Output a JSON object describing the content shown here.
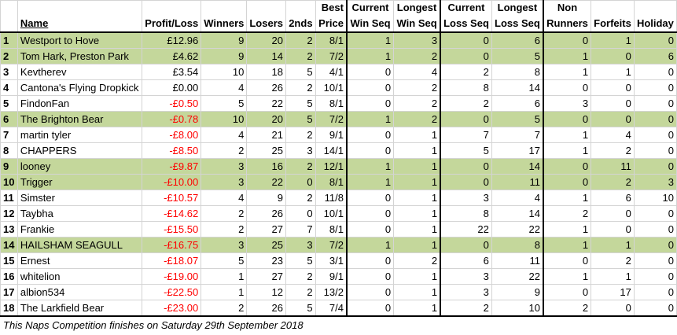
{
  "headers": {
    "name": "Name",
    "profit_loss": "Profit/Loss",
    "winners": "Winners",
    "losers": "Losers",
    "seconds": "2nds",
    "best_price_1": "Best",
    "best_price_2": "Price",
    "current_win_1": "Current",
    "current_win_2": "Win Seq",
    "longest_win_1": "Longest",
    "longest_win_2": "Win Seq",
    "current_loss_1": "Current",
    "current_loss_2": "Loss Seq",
    "longest_loss_1": "Longest",
    "longest_loss_2": "Loss Seq",
    "non_runners_1": "Non",
    "non_runners_2": "Runners",
    "forfeits": "Forfeits",
    "holiday": "Holiday"
  },
  "rows": [
    {
      "pos": "1",
      "name": "Westport to Hove",
      "pl": "£12.96",
      "w": "9",
      "l": "20",
      "s": "2",
      "bp": "8/1",
      "cw": "1",
      "lw": "3",
      "cl": "0",
      "ll": "6",
      "nr": "0",
      "f": "1",
      "h": "0",
      "green": true,
      "neg": false
    },
    {
      "pos": "2",
      "name": "Tom Hark, Preston Park",
      "pl": "£4.62",
      "w": "9",
      "l": "14",
      "s": "2",
      "bp": "7/2",
      "cw": "1",
      "lw": "2",
      "cl": "0",
      "ll": "5",
      "nr": "1",
      "f": "0",
      "h": "6",
      "green": true,
      "neg": false
    },
    {
      "pos": "3",
      "name": "Kevtherev",
      "pl": "£3.54",
      "w": "10",
      "l": "18",
      "s": "5",
      "bp": "4/1",
      "cw": "0",
      "lw": "4",
      "cl": "2",
      "ll": "8",
      "nr": "1",
      "f": "1",
      "h": "0",
      "green": false,
      "neg": false
    },
    {
      "pos": "4",
      "name": "Cantona's Flying Dropkick",
      "pl": "£0.00",
      "w": "4",
      "l": "26",
      "s": "2",
      "bp": "10/1",
      "cw": "0",
      "lw": "2",
      "cl": "8",
      "ll": "14",
      "nr": "0",
      "f": "0",
      "h": "0",
      "green": false,
      "neg": false
    },
    {
      "pos": "5",
      "name": "FindonFan",
      "pl": "-£0.50",
      "w": "5",
      "l": "22",
      "s": "5",
      "bp": "8/1",
      "cw": "0",
      "lw": "2",
      "cl": "2",
      "ll": "6",
      "nr": "3",
      "f": "0",
      "h": "0",
      "green": false,
      "neg": true
    },
    {
      "pos": "6",
      "name": "The Brighton Bear",
      "pl": "-£0.78",
      "w": "10",
      "l": "20",
      "s": "5",
      "bp": "7/2",
      "cw": "1",
      "lw": "2",
      "cl": "0",
      "ll": "5",
      "nr": "0",
      "f": "0",
      "h": "0",
      "green": true,
      "neg": true
    },
    {
      "pos": "7",
      "name": "martin tyler",
      "pl": "-£8.00",
      "w": "4",
      "l": "21",
      "s": "2",
      "bp": "9/1",
      "cw": "0",
      "lw": "1",
      "cl": "7",
      "ll": "7",
      "nr": "1",
      "f": "4",
      "h": "0",
      "green": false,
      "neg": true
    },
    {
      "pos": "8",
      "name": "CHAPPERS",
      "pl": "-£8.50",
      "w": "2",
      "l": "25",
      "s": "3",
      "bp": "14/1",
      "cw": "0",
      "lw": "1",
      "cl": "5",
      "ll": "17",
      "nr": "1",
      "f": "2",
      "h": "0",
      "green": false,
      "neg": true
    },
    {
      "pos": "9",
      "name": "looney",
      "pl": "-£9.87",
      "w": "3",
      "l": "16",
      "s": "2",
      "bp": "12/1",
      "cw": "1",
      "lw": "1",
      "cl": "0",
      "ll": "14",
      "nr": "0",
      "f": "11",
      "h": "0",
      "green": true,
      "neg": true
    },
    {
      "pos": "10",
      "name": "Trigger",
      "pl": "-£10.00",
      "w": "3",
      "l": "22",
      "s": "0",
      "bp": "8/1",
      "cw": "1",
      "lw": "1",
      "cl": "0",
      "ll": "11",
      "nr": "0",
      "f": "2",
      "h": "3",
      "green": true,
      "neg": true
    },
    {
      "pos": "11",
      "name": "Simster",
      "pl": "-£10.57",
      "w": "4",
      "l": "9",
      "s": "2",
      "bp": "11/8",
      "cw": "0",
      "lw": "1",
      "cl": "3",
      "ll": "4",
      "nr": "1",
      "f": "6",
      "h": "10",
      "green": false,
      "neg": true
    },
    {
      "pos": "12",
      "name": "Taybha",
      "pl": "-£14.62",
      "w": "2",
      "l": "26",
      "s": "0",
      "bp": "10/1",
      "cw": "0",
      "lw": "1",
      "cl": "8",
      "ll": "14",
      "nr": "2",
      "f": "0",
      "h": "0",
      "green": false,
      "neg": true
    },
    {
      "pos": "13",
      "name": "Frankie",
      "pl": "-£15.50",
      "w": "2",
      "l": "27",
      "s": "7",
      "bp": "8/1",
      "cw": "0",
      "lw": "1",
      "cl": "22",
      "ll": "22",
      "nr": "1",
      "f": "0",
      "h": "0",
      "green": false,
      "neg": true
    },
    {
      "pos": "14",
      "name": "HAILSHAM SEAGULL",
      "pl": "-£16.75",
      "w": "3",
      "l": "25",
      "s": "3",
      "bp": "7/2",
      "cw": "1",
      "lw": "1",
      "cl": "0",
      "ll": "8",
      "nr": "1",
      "f": "1",
      "h": "0",
      "green": true,
      "neg": true
    },
    {
      "pos": "15",
      "name": "Ernest",
      "pl": "-£18.07",
      "w": "5",
      "l": "23",
      "s": "5",
      "bp": "3/1",
      "cw": "0",
      "lw": "2",
      "cl": "6",
      "ll": "11",
      "nr": "0",
      "f": "2",
      "h": "0",
      "green": false,
      "neg": true
    },
    {
      "pos": "16",
      "name": "whitelion",
      "pl": "-£19.00",
      "w": "1",
      "l": "27",
      "s": "2",
      "bp": "9/1",
      "cw": "0",
      "lw": "1",
      "cl": "3",
      "ll": "22",
      "nr": "1",
      "f": "1",
      "h": "0",
      "green": false,
      "neg": true
    },
    {
      "pos": "17",
      "name": "albion534",
      "pl": "-£22.50",
      "w": "1",
      "l": "12",
      "s": "2",
      "bp": "13/2",
      "cw": "0",
      "lw": "1",
      "cl": "3",
      "ll": "9",
      "nr": "0",
      "f": "17",
      "h": "0",
      "green": false,
      "neg": true
    },
    {
      "pos": "18",
      "name": "The Larkfield Bear",
      "pl": "-£23.00",
      "w": "2",
      "l": "26",
      "s": "5",
      "bp": "7/4",
      "cw": "0",
      "lw": "1",
      "cl": "2",
      "ll": "10",
      "nr": "2",
      "f": "0",
      "h": "0",
      "green": false,
      "neg": true
    }
  ],
  "footnote": "This Naps Competition finishes on Saturday 29th September 2018",
  "colors": {
    "highlight_green": "#c4d79b",
    "negative_red": "#ff0000",
    "group_border": "#000000"
  }
}
